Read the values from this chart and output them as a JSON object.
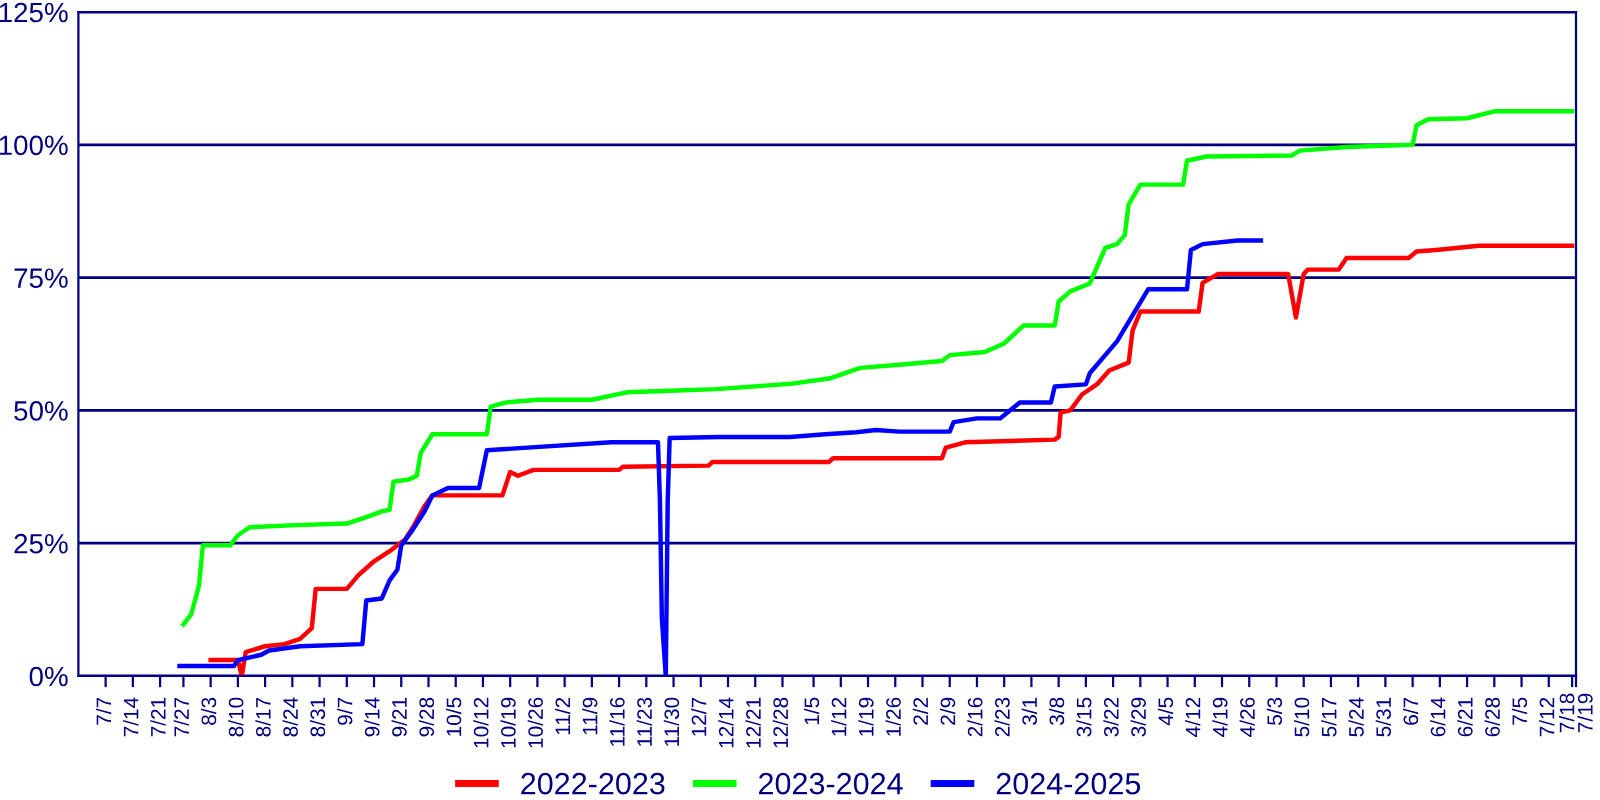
{
  "chart_data": {
    "type": "line",
    "xlim": [
      "2023-06-30",
      "2024-07-19"
    ],
    "ylim": [
      0,
      125
    ],
    "xticks": [
      {
        "value": "2023-07-07",
        "label": "7/7"
      },
      {
        "value": "2023-07-14",
        "label": "7/14"
      },
      {
        "value": "2023-07-21",
        "label": "7/21"
      },
      {
        "value": "2023-07-27",
        "label": "7/27"
      },
      {
        "value": "2023-08-03",
        "label": "8/3"
      },
      {
        "value": "2023-08-10",
        "label": "8/10"
      },
      {
        "value": "2023-08-17",
        "label": "8/17"
      },
      {
        "value": "2023-08-24",
        "label": "8/24"
      },
      {
        "value": "2023-08-31",
        "label": "8/31"
      },
      {
        "value": "2023-09-07",
        "label": "9/7"
      },
      {
        "value": "2023-09-14",
        "label": "9/14"
      },
      {
        "value": "2023-09-21",
        "label": "9/21"
      },
      {
        "value": "2023-09-28",
        "label": "9/28"
      },
      {
        "value": "2023-10-05",
        "label": "10/5"
      },
      {
        "value": "2023-10-12",
        "label": "10/12"
      },
      {
        "value": "2023-10-19",
        "label": "10/19"
      },
      {
        "value": "2023-10-26",
        "label": "10/26"
      },
      {
        "value": "2023-11-02",
        "label": "11/2"
      },
      {
        "value": "2023-11-09",
        "label": "11/9"
      },
      {
        "value": "2023-11-16",
        "label": "11/16"
      },
      {
        "value": "2023-11-23",
        "label": "11/23"
      },
      {
        "value": "2023-11-30",
        "label": "11/30"
      },
      {
        "value": "2023-12-07",
        "label": "12/7"
      },
      {
        "value": "2023-12-14",
        "label": "12/14"
      },
      {
        "value": "2023-12-21",
        "label": "12/21"
      },
      {
        "value": "2023-12-28",
        "label": "12/28"
      },
      {
        "value": "2024-01-05",
        "label": "1/5"
      },
      {
        "value": "2024-01-12",
        "label": "1/12"
      },
      {
        "value": "2024-01-19",
        "label": "1/19"
      },
      {
        "value": "2024-01-26",
        "label": "1/26"
      },
      {
        "value": "2024-02-02",
        "label": "2/2"
      },
      {
        "value": "2024-02-09",
        "label": "2/9"
      },
      {
        "value": "2024-02-16",
        "label": "2/16"
      },
      {
        "value": "2024-02-23",
        "label": "2/23"
      },
      {
        "value": "2024-03-01",
        "label": "3/1"
      },
      {
        "value": "2024-03-08",
        "label": "3/8"
      },
      {
        "value": "2024-03-15",
        "label": "3/15"
      },
      {
        "value": "2024-03-22",
        "label": "3/22"
      },
      {
        "value": "2024-03-29",
        "label": "3/29"
      },
      {
        "value": "2024-04-05",
        "label": "4/5"
      },
      {
        "value": "2024-04-12",
        "label": "4/12"
      },
      {
        "value": "2024-04-19",
        "label": "4/19"
      },
      {
        "value": "2024-04-26",
        "label": "4/26"
      },
      {
        "value": "2024-05-03",
        "label": "5/3"
      },
      {
        "value": "2024-05-10",
        "label": "5/10"
      },
      {
        "value": "2024-05-17",
        "label": "5/17"
      },
      {
        "value": "2024-05-24",
        "label": "5/24"
      },
      {
        "value": "2024-05-31",
        "label": "5/31"
      },
      {
        "value": "2024-06-07",
        "label": "6/7"
      },
      {
        "value": "2024-06-14",
        "label": "6/14"
      },
      {
        "value": "2024-06-21",
        "label": "6/21"
      },
      {
        "value": "2024-06-28",
        "label": "6/28"
      },
      {
        "value": "2024-07-05",
        "label": "7/5"
      },
      {
        "value": "2024-07-12",
        "label": "7/12"
      },
      {
        "value": "2024-07-18",
        "label": "7/18"
      },
      {
        "value": "2024-07-19",
        "label": "7/19"
      }
    ],
    "yticks": [
      {
        "value": 0,
        "label": "0%"
      },
      {
        "value": 25,
        "label": "25%"
      },
      {
        "value": 50,
        "label": "50%"
      },
      {
        "value": 75,
        "label": "75%"
      },
      {
        "value": 100,
        "label": "100%"
      },
      {
        "value": 125,
        "label": "125%"
      }
    ],
    "grid": "y",
    "legend": "bottom",
    "marker": "none",
    "line_style": "solid",
    "series": [
      {
        "name": "2022-2023",
        "color": "#ff0000",
        "x": [
          "2023-08-03",
          "2023-08-10",
          "2023-08-11",
          "2023-08-12",
          "2023-08-17",
          "2023-08-22",
          "2023-08-26",
          "2023-08-29",
          "2023-08-30",
          "2023-09-07",
          "2023-09-10",
          "2023-09-14",
          "2023-09-18",
          "2023-09-22",
          "2023-09-24",
          "2023-09-27",
          "2023-09-29",
          "2023-10-17",
          "2023-10-19",
          "2023-10-21",
          "2023-10-25",
          "2023-11-16",
          "2023-11-17",
          "2023-12-09",
          "2023-12-10",
          "2024-01-09",
          "2024-01-10",
          "2024-02-07",
          "2024-02-08",
          "2024-02-13",
          "2024-03-07",
          "2024-03-08",
          "2024-03-08T12:00",
          "2024-03-11",
          "2024-03-14",
          "2024-03-18",
          "2024-03-21",
          "2024-03-26",
          "2024-03-27",
          "2024-03-29",
          "2024-04-13",
          "2024-04-14",
          "2024-04-18",
          "2024-05-06",
          "2024-05-08",
          "2024-05-10",
          "2024-05-11",
          "2024-05-19",
          "2024-05-21",
          "2024-06-06",
          "2024-06-08",
          "2024-06-13",
          "2024-06-24",
          "2024-07-18"
        ],
        "values": [
          3,
          3,
          0,
          4.5,
          5.6,
          6,
          7,
          9,
          16.4,
          16.4,
          19,
          21.6,
          23.5,
          25.7,
          28,
          32,
          34,
          34,
          38.4,
          37.7,
          38.8,
          38.8,
          39.4,
          39.6,
          40.3,
          40.3,
          41,
          41,
          43,
          44,
          44.5,
          45,
          49.6,
          50,
          53,
          55,
          57.5,
          59,
          65,
          68.6,
          68.6,
          74,
          75.7,
          75.7,
          67.5,
          75.7,
          76.5,
          76.5,
          78.7,
          78.7,
          79.9,
          80.2,
          81,
          81
        ]
      },
      {
        "name": "2023-2024",
        "color": "#00ff00",
        "x": [
          "2023-07-27",
          "2023-07-29",
          "2023-07-31",
          "2023-08-01",
          "2023-08-08",
          "2023-08-10",
          "2023-08-13",
          "2023-08-25",
          "2023-09-07",
          "2023-09-12",
          "2023-09-16",
          "2023-09-18",
          "2023-09-19",
          "2023-09-23",
          "2023-09-25",
          "2023-09-26",
          "2023-09-29",
          "2023-10-13",
          "2023-10-14",
          "2023-10-18",
          "2023-10-26",
          "2023-11-09",
          "2023-11-18",
          "2023-11-29",
          "2023-12-11",
          "2023-12-30",
          "2024-01-09",
          "2024-01-17",
          "2024-01-27",
          "2024-02-07",
          "2024-02-09",
          "2024-02-18",
          "2024-02-23",
          "2024-02-28",
          "2024-03-07",
          "2024-03-08",
          "2024-03-11",
          "2024-03-16",
          "2024-03-20",
          "2024-03-23",
          "2024-03-25",
          "2024-03-26",
          "2024-03-29",
          "2024-04-09",
          "2024-04-10",
          "2024-04-15",
          "2024-05-07",
          "2024-05-09",
          "2024-05-21",
          "2024-06-07",
          "2024-06-08",
          "2024-06-11",
          "2024-06-21",
          "2024-06-28",
          "2024-07-18"
        ],
        "values": [
          9.7,
          11.6,
          17,
          24.6,
          24.6,
          26.5,
          28,
          28.4,
          28.7,
          29.9,
          31,
          31.3,
          36.6,
          37,
          37.7,
          42,
          45.5,
          45.5,
          50.7,
          51.5,
          52,
          52,
          53.4,
          53.7,
          54,
          55,
          56,
          58,
          58.6,
          59.3,
          60.4,
          61,
          62.6,
          66,
          66,
          70.5,
          72.4,
          73.9,
          80.6,
          81.3,
          83,
          88.8,
          92.5,
          92.5,
          97,
          97.8,
          98,
          98.9,
          99.6,
          100,
          103.7,
          104.8,
          105,
          106.3,
          106.3
        ]
      },
      {
        "name": "2024-2025",
        "color": "#0000ff",
        "x": [
          "2023-07-26",
          "2023-08-09",
          "2023-08-10",
          "2023-08-16",
          "2023-08-18",
          "2023-08-26",
          "2023-09-11",
          "2023-09-12",
          "2023-09-16",
          "2023-09-18",
          "2023-09-20",
          "2023-09-21",
          "2023-09-24",
          "2023-09-27",
          "2023-09-29",
          "2023-10-03",
          "2023-10-11",
          "2023-10-13",
          "2023-11-14",
          "2023-11-26",
          "2023-11-26T12:00",
          "2023-11-27",
          "2023-11-28",
          "2023-11-28T12:00",
          "2023-11-29",
          "2023-12-12",
          "2023-12-30",
          "2024-01-08",
          "2024-01-16",
          "2024-01-21",
          "2024-01-27",
          "2024-02-09",
          "2024-02-10",
          "2024-02-16",
          "2024-02-22",
          "2024-02-27",
          "2024-03-06",
          "2024-03-07",
          "2024-03-15",
          "2024-03-16",
          "2024-03-23",
          "2024-03-31",
          "2024-04-10",
          "2024-04-11",
          "2024-04-14",
          "2024-04-23",
          "2024-04-29"
        ],
        "values": [
          1.9,
          1.9,
          3,
          4,
          4.8,
          5.6,
          6,
          14.2,
          14.6,
          18,
          20,
          24.6,
          27.6,
          31,
          34,
          35.4,
          35.4,
          42.5,
          44,
          44,
          33,
          10.8,
          0,
          33,
          44.8,
          45,
          45,
          45.5,
          45.9,
          46.3,
          46,
          46,
          47.8,
          48.5,
          48.5,
          51.5,
          51.5,
          54.5,
          54.9,
          57,
          63,
          72.8,
          72.8,
          80.2,
          81.3,
          82,
          82
        ]
      }
    ]
  }
}
